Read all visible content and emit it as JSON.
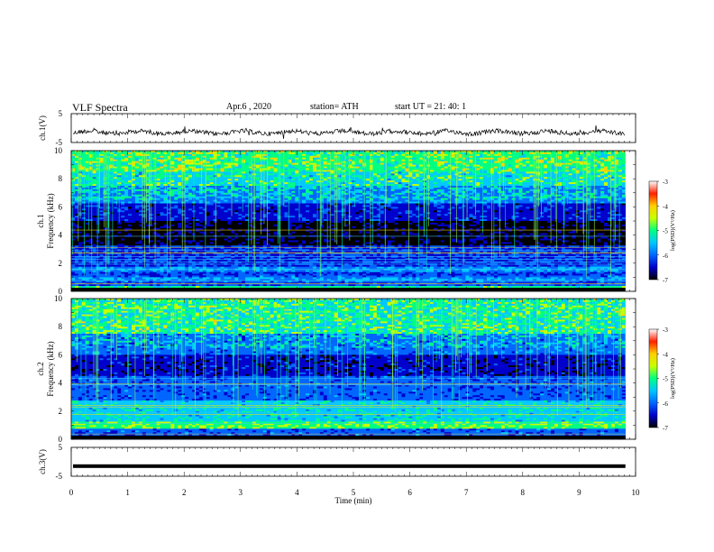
{
  "header": {
    "title": "VLF  Spectra",
    "date": "Apr.6  , 2020",
    "station": "station= ATH",
    "start": "start  UT  =    21: 40: 1"
  },
  "chart_data": [
    {
      "type": "line",
      "ylabel": "ch.1(V)",
      "ylim": [
        -5,
        5
      ],
      "y_ticks": [
        "5",
        "-5"
      ],
      "series_level": -1.5,
      "xlim": [
        0,
        10
      ],
      "xlabel": "Time  (min)",
      "x_ticks": [
        "0",
        "1",
        "2",
        "3",
        "4",
        "5",
        "6",
        "7",
        "8",
        "9",
        "10"
      ]
    },
    {
      "type": "heatmap",
      "ylabel": "ch.1\nFrequency  (kHz)",
      "ylabel_lines": [
        "ch.1",
        "Frequency  (kHz)"
      ],
      "ylim": [
        0,
        10
      ],
      "y_ticks": [
        "0",
        "2",
        "4",
        "6",
        "8",
        "10"
      ],
      "colorbar": {
        "label": "log(PSD)(V²/Hz)",
        "range": [
          -7,
          -3
        ],
        "ticks": [
          "-3",
          "-4",
          "-5",
          "-6",
          "-7"
        ],
        "colors": [
          "#000000",
          "#0000cc",
          "#0066ff",
          "#00c8ff",
          "#00ff80",
          "#c8ff00",
          "#ffd000",
          "#ff2000",
          "#ffffff"
        ]
      }
    },
    {
      "type": "heatmap",
      "ylabel": "ch.2\nFrequency  (kHz)",
      "ylabel_lines": [
        "ch.2",
        "Frequency  (kHz)"
      ],
      "ylim": [
        0,
        10
      ],
      "y_ticks": [
        "0",
        "2",
        "4",
        "6",
        "8",
        "10"
      ],
      "colorbar": {
        "label": "log(PSD)(V²/Hz)",
        "range": [
          -7,
          -3
        ],
        "ticks": [
          "-3",
          "-4",
          "-5",
          "-6",
          "-7"
        ],
        "colors": [
          "#000000",
          "#0000cc",
          "#0066ff",
          "#00c8ff",
          "#00ff80",
          "#c8ff00",
          "#ffd000",
          "#ff2000",
          "#ffffff"
        ]
      }
    },
    {
      "type": "line",
      "ylabel": "ch.3(V)",
      "ylim": [
        -5,
        5
      ],
      "y_ticks": [
        "5",
        "-5"
      ],
      "series_level": -1.5
    }
  ]
}
